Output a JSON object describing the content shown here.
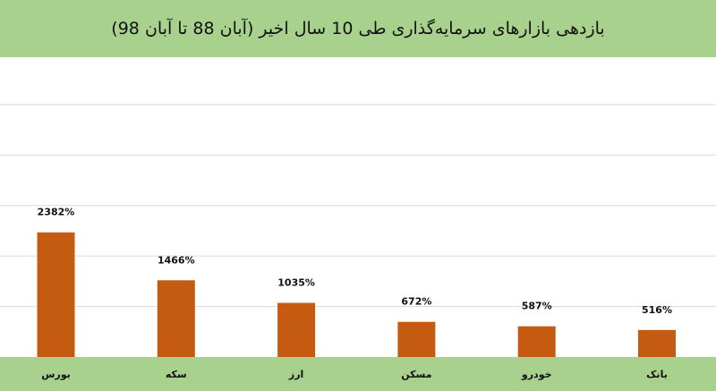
{
  "chart_data": {
    "type": "bar",
    "title": "بازدهی بازارهای سرمایه‌گذاری طی 10 سال اخیر (آبان 88 تا آبان 98)",
    "categories": [
      "بورس",
      "سکه",
      "ارز",
      "مسکن",
      "خودرو",
      "بانک"
    ],
    "values": [
      2382,
      1466,
      1035,
      672,
      587,
      516
    ],
    "value_labels": [
      "2382%",
      "1466%",
      "1035%",
      "672%",
      "587%",
      "516%"
    ],
    "ylim": [
      0,
      3000
    ],
    "grid": true,
    "legend": "none"
  },
  "colors": {
    "bar": "#c55a11",
    "band": "#a9d18e",
    "grid": "#d9d9d9"
  }
}
